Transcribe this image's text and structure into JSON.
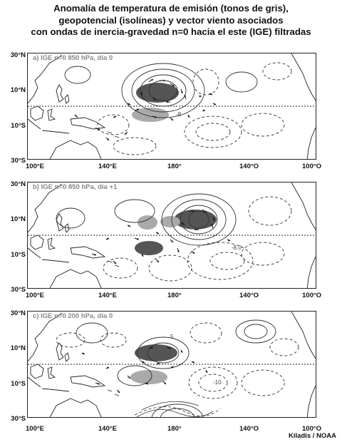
{
  "title": {
    "line1": "Anomalía de temperatura de emisión (tonos de gris),",
    "line2": "geopotencial (isolíneas) y vector viento asociados",
    "line3": "con ondas de inercia-gravedad n=0 hacia el este (IGE) filtradas"
  },
  "axes": {
    "lat_labels": [
      "30°N",
      "10°N",
      "10°S",
      "30°S"
    ],
    "lon_labels": [
      "100°E",
      "140°E",
      "180°",
      "140°O",
      "100°O"
    ]
  },
  "panels": [
    {
      "label": "a) IGE n=0 850 hPa, día 0",
      "contour_label": "-8"
    },
    {
      "label": "b) IGE n=0 850 hPa, día +1",
      "contour_label": "-8.0"
    },
    {
      "label": "c) IGE n=0 200 hPa, día 0",
      "contour_label": "-10",
      "contour_label2": "5"
    }
  ],
  "credit": "Kiladis / NOAA"
}
